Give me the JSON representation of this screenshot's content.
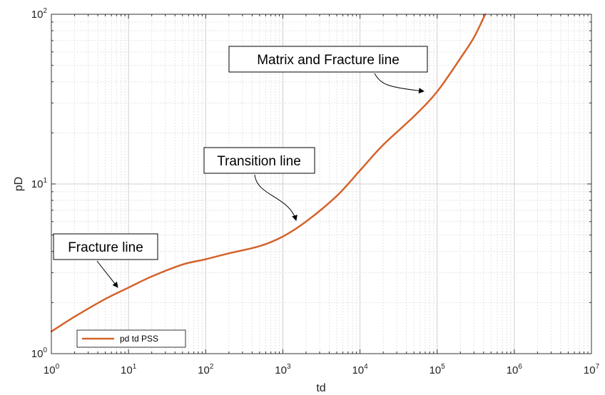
{
  "chart_data": {
    "type": "line",
    "xscale": "log",
    "yscale": "log",
    "xlim": [
      1,
      10000000
    ],
    "ylim": [
      1,
      100
    ],
    "grid": true,
    "minor_grid": true,
    "legend_position": "bottom-left",
    "xlabel": "td",
    "ylabel": "pD",
    "x_ticks": [
      {
        "base": "10",
        "exp": "0"
      },
      {
        "base": "10",
        "exp": "1"
      },
      {
        "base": "10",
        "exp": "2"
      },
      {
        "base": "10",
        "exp": "3"
      },
      {
        "base": "10",
        "exp": "4"
      },
      {
        "base": "10",
        "exp": "5"
      },
      {
        "base": "10",
        "exp": "6"
      },
      {
        "base": "10",
        "exp": "7"
      }
    ],
    "y_ticks": [
      {
        "base": "10",
        "exp": "0"
      },
      {
        "base": "10",
        "exp": "1"
      },
      {
        "base": "10",
        "exp": "2"
      }
    ],
    "series": [
      {
        "name": "pd td PSS",
        "color": "#d4632b",
        "x": [
          1,
          2,
          5,
          10,
          20,
          50,
          100,
          200,
          500,
          1000,
          2000,
          5000,
          10000,
          20000,
          50000,
          100000,
          200000,
          300000,
          420000
        ],
        "y": [
          1.35,
          1.65,
          2.1,
          2.45,
          2.85,
          3.35,
          3.6,
          3.9,
          4.3,
          4.9,
          6.0,
          8.5,
          12.0,
          17.0,
          25.0,
          35.0,
          55.0,
          73.0,
          100.0
        ]
      }
    ],
    "annotations": [
      {
        "text": "Matrix and Fracture line"
      },
      {
        "text": "Transition line"
      },
      {
        "text": "Fracture line"
      }
    ]
  }
}
